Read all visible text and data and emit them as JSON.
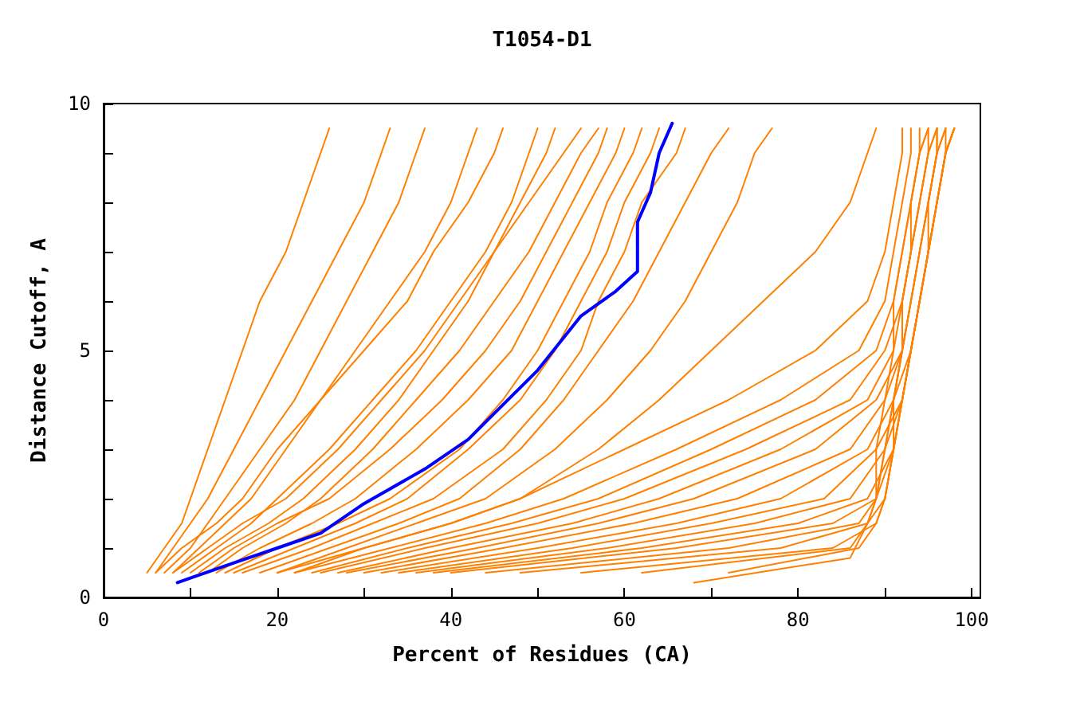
{
  "chart_data": {
    "type": "line",
    "title": "T1054-D1",
    "xlabel": "Percent of Residues (CA)",
    "ylabel": "Distance Cutoff, A",
    "xlim": [
      0,
      101
    ],
    "ylim": [
      0,
      10
    ],
    "xticks": [
      0,
      {
        "value": 10,
        "label": null
      },
      20,
      {
        "value": 30,
        "label": null
      },
      40,
      {
        "value": 50,
        "label": null
      },
      60,
      {
        "value": 70,
        "label": null
      },
      80,
      {
        "value": 90,
        "label": null
      },
      100
    ],
    "yticks": [
      0,
      {
        "value": 1,
        "label": null
      },
      {
        "value": 2,
        "label": null
      },
      {
        "value": 3,
        "label": null
      },
      {
        "value": 4,
        "label": null
      },
      5,
      {
        "value": 6,
        "label": null
      },
      {
        "value": 7,
        "label": null
      },
      {
        "value": 8,
        "label": null
      },
      {
        "value": 9,
        "label": null
      },
      10
    ],
    "grid": false,
    "marker": "none",
    "line_style": "solid",
    "series": [
      {
        "color": "#ff8000",
        "x": [
          5,
          7,
          9,
          10,
          12,
          14,
          16,
          18,
          21,
          23,
          25,
          26
        ],
        "values": [
          0.5,
          1,
          1.5,
          2,
          3,
          4,
          5,
          6,
          7,
          8,
          9,
          9.5
        ]
      },
      {
        "color": "#ff8000",
        "x": [
          6,
          8,
          10,
          12,
          15,
          18,
          21,
          24,
          27,
          30,
          32,
          33
        ],
        "values": [
          0.5,
          1,
          1.5,
          2,
          3,
          4,
          5,
          6,
          7,
          8,
          9,
          9.5
        ]
      },
      {
        "color": "#ff8000",
        "x": [
          7,
          10,
          12,
          14,
          18,
          22,
          25,
          28,
          31,
          34,
          36,
          37
        ],
        "values": [
          0.5,
          1,
          1.5,
          2,
          3,
          4,
          5,
          6,
          7,
          8,
          9,
          9.5
        ]
      },
      {
        "color": "#ff8000",
        "x": [
          8,
          11,
          14,
          17,
          21,
          25,
          29,
          33,
          37,
          40,
          42,
          43
        ],
        "values": [
          0.5,
          1,
          1.5,
          2,
          3,
          4,
          5,
          6,
          7,
          8,
          9,
          9.5
        ]
      },
      {
        "color": "#ff8000",
        "x": [
          6,
          9,
          13,
          16,
          20,
          25,
          30,
          35,
          38,
          42,
          45,
          46
        ],
        "values": [
          0.5,
          1,
          1.5,
          2,
          3,
          4,
          5,
          6,
          7,
          8,
          9,
          9.5
        ]
      },
      {
        "color": "#ff8000",
        "x": [
          9,
          13,
          17,
          20,
          26,
          31,
          36,
          40,
          44,
          47,
          49,
          50
        ],
        "values": [
          0.5,
          1,
          1.5,
          2,
          3,
          4,
          5,
          6,
          7,
          8,
          9,
          9.5
        ]
      },
      {
        "color": "#ff8000",
        "x": [
          10,
          14,
          19,
          23,
          29,
          34,
          38,
          42,
          45,
          48,
          51,
          52
        ],
        "values": [
          0.5,
          1,
          1.5,
          2,
          3,
          4,
          5,
          6,
          7,
          8,
          9,
          9.5
        ]
      },
      {
        "color": "#ff8000",
        "x": [
          8,
          12,
          16,
          21,
          27,
          32,
          37,
          41,
          45,
          49,
          53,
          55
        ],
        "values": [
          0.5,
          1,
          1.5,
          2,
          3,
          4,
          5,
          6,
          7,
          8,
          9,
          9.5
        ]
      },
      {
        "color": "#ff8000",
        "x": [
          12,
          16,
          21,
          25,
          31,
          36,
          41,
          45,
          49,
          52,
          55,
          57
        ],
        "values": [
          0.5,
          1,
          1.5,
          2,
          3,
          4,
          5,
          6,
          7,
          8,
          9,
          9.5
        ]
      },
      {
        "color": "#ff8000",
        "x": [
          11,
          15,
          20,
          26,
          33,
          39,
          44,
          48,
          51,
          54,
          57,
          58
        ],
        "values": [
          0.5,
          1,
          1.5,
          2,
          3,
          4,
          5,
          6,
          7,
          8,
          9,
          9.5
        ]
      },
      {
        "color": "#ff8000",
        "x": [
          13,
          18,
          24,
          29,
          36,
          42,
          47,
          50,
          53,
          56,
          59,
          60
        ],
        "values": [
          0.5,
          1,
          1.5,
          2,
          3,
          4,
          5,
          6,
          7,
          8,
          9,
          9.5
        ]
      },
      {
        "color": "#ff8000",
        "x": [
          14,
          20,
          27,
          33,
          41,
          46,
          50,
          53,
          56,
          58,
          61,
          62
        ],
        "values": [
          0.5,
          1,
          1.5,
          2,
          3,
          4,
          5,
          6,
          7,
          8,
          9,
          9.5
        ]
      },
      {
        "color": "#ff8000",
        "x": [
          15,
          22,
          29,
          35,
          42,
          48,
          52,
          55,
          58,
          60,
          63,
          64
        ],
        "values": [
          0.5,
          1,
          1.5,
          2,
          3,
          4,
          5,
          6,
          7,
          8,
          9,
          9.5
        ]
      },
      {
        "color": "#ff8000",
        "x": [
          16,
          24,
          31,
          38,
          46,
          51,
          55,
          57,
          60,
          62,
          66,
          67
        ],
        "values": [
          0.5,
          1,
          1.5,
          2,
          3,
          4,
          5,
          6,
          7,
          8,
          9,
          9.5
        ]
      },
      {
        "color": "#ff8000",
        "x": [
          18,
          26,
          34,
          41,
          48,
          53,
          57,
          61,
          64,
          67,
          70,
          72
        ],
        "values": [
          0.5,
          1,
          1.5,
          2,
          3,
          4,
          5,
          6,
          7,
          8,
          9,
          9.5
        ]
      },
      {
        "color": "#ff8000",
        "x": [
          20,
          28,
          36,
          44,
          52,
          58,
          63,
          67,
          70,
          73,
          75,
          77
        ],
        "values": [
          0.5,
          1,
          1.5,
          2,
          3,
          4,
          5,
          6,
          7,
          8,
          9,
          9.5
        ]
      },
      {
        "color": "#ff8000",
        "x": [
          22,
          30,
          40,
          48,
          57,
          64,
          70,
          76,
          82,
          86,
          88,
          89
        ],
        "values": [
          0.5,
          1,
          1.5,
          2,
          3,
          4,
          5,
          6,
          7,
          8,
          9,
          9.5
        ]
      },
      {
        "color": "#ff8000",
        "x": [
          20,
          30,
          40,
          48,
          60,
          72,
          82,
          88,
          90,
          91,
          92,
          92
        ],
        "values": [
          0.5,
          1,
          1.5,
          2,
          3,
          4,
          5,
          6,
          7,
          8,
          9,
          9.5
        ]
      },
      {
        "color": "#ff8000",
        "x": [
          22,
          33,
          44,
          53,
          66,
          78,
          87,
          90,
          91,
          92,
          93,
          93
        ],
        "values": [
          0.5,
          1,
          1.5,
          2,
          3,
          4,
          5,
          6,
          7,
          8,
          9,
          9.5
        ]
      },
      {
        "color": "#ff8000",
        "x": [
          24,
          35,
          47,
          57,
          70,
          82,
          89,
          91,
          92,
          93,
          94,
          94
        ],
        "values": [
          0.5,
          1,
          1.5,
          2,
          3,
          4,
          5,
          6,
          7,
          8,
          9,
          9.5
        ]
      },
      {
        "color": "#ff8000",
        "x": [
          25,
          37,
          50,
          60,
          74,
          86,
          90,
          92,
          93,
          94,
          95,
          95
        ],
        "values": [
          0.5,
          1,
          1.5,
          2,
          3,
          4,
          5,
          6,
          7,
          8,
          9,
          9.5
        ]
      },
      {
        "color": "#ff8000",
        "x": [
          27,
          40,
          54,
          64,
          78,
          88,
          91,
          92,
          93,
          94,
          95,
          96
        ],
        "values": [
          0.5,
          1,
          1.5,
          2,
          3,
          4,
          5,
          6,
          7,
          8,
          9,
          9.5
        ]
      },
      {
        "color": "#ff8000",
        "x": [
          28,
          43,
          57,
          68,
          82,
          89,
          92,
          93,
          94,
          95,
          96,
          96
        ],
        "values": [
          0.5,
          1,
          1.5,
          2,
          3,
          4,
          5,
          6,
          7,
          8,
          9,
          9.5
        ]
      },
      {
        "color": "#ff8000",
        "x": [
          30,
          46,
          61,
          73,
          86,
          90,
          92,
          93,
          94,
          95,
          96,
          97
        ],
        "values": [
          0.5,
          1,
          1.5,
          2,
          3,
          4,
          5,
          6,
          7,
          8,
          9,
          9.5
        ]
      },
      {
        "color": "#ff8000",
        "x": [
          32,
          50,
          66,
          78,
          88,
          91,
          93,
          94,
          95,
          96,
          97,
          97
        ],
        "values": [
          0.5,
          1,
          1.5,
          2,
          3,
          4,
          5,
          6,
          7,
          8,
          9,
          9.5
        ]
      },
      {
        "color": "#ff8000",
        "x": [
          34,
          54,
          70,
          83,
          89,
          92,
          93,
          94,
          95,
          96,
          97,
          98
        ],
        "values": [
          0.5,
          1,
          1.5,
          2,
          3,
          4,
          5,
          6,
          7,
          8,
          9,
          9.5
        ]
      },
      {
        "color": "#ff8000",
        "x": [
          36,
          58,
          75,
          86,
          90,
          92,
          93,
          94,
          95,
          96,
          97,
          98
        ],
        "values": [
          0.5,
          1,
          1.5,
          2,
          3,
          4,
          5,
          6,
          7,
          8,
          9,
          9.5
        ]
      },
      {
        "color": "#ff8000",
        "x": [
          38,
          62,
          80,
          88,
          91,
          92,
          93,
          94,
          95,
          96,
          97,
          98
        ],
        "values": [
          0.5,
          1,
          1.5,
          2,
          3,
          4,
          5,
          6,
          7,
          8,
          9,
          9.5
        ]
      },
      {
        "color": "#ff8000",
        "x": [
          40,
          66,
          84,
          89,
          91,
          92,
          93,
          94,
          95,
          96,
          97,
          98
        ],
        "values": [
          0.5,
          1,
          1.5,
          2,
          3,
          4,
          5,
          6,
          7,
          8,
          9,
          9.5
        ]
      },
      {
        "color": "#ff8000",
        "x": [
          44,
          72,
          87,
          89,
          90,
          91,
          92,
          93,
          94,
          95,
          96,
          97
        ],
        "values": [
          0.5,
          1,
          1.5,
          2,
          3,
          4,
          5,
          6,
          7,
          8,
          9,
          9.5
        ]
      },
      {
        "color": "#ff8000",
        "x": [
          48,
          78,
          88,
          89,
          90,
          91,
          92,
          92,
          93,
          94,
          95,
          96
        ],
        "values": [
          0.5,
          1,
          1.5,
          2,
          3,
          4,
          5,
          6,
          7,
          8,
          9,
          9.5
        ]
      },
      {
        "color": "#ff8000",
        "x": [
          55,
          84,
          89,
          90,
          91,
          91,
          92,
          92,
          93,
          93,
          94,
          95
        ],
        "values": [
          0.5,
          1,
          1.5,
          2,
          3,
          4,
          5,
          6,
          7,
          8,
          9,
          9.5
        ]
      },
      {
        "color": "#ff8000",
        "x": [
          62,
          86,
          88,
          89,
          89,
          90,
          91,
          91,
          92,
          93,
          94,
          95
        ],
        "values": [
          0.5,
          1,
          1.5,
          2,
          3,
          4,
          5,
          6,
          7,
          8,
          9,
          9.5
        ]
      },
      {
        "color": "#ff8000",
        "x": [
          72,
          87,
          89,
          90,
          91,
          92,
          93,
          94,
          95,
          95,
          96,
          96
        ],
        "values": [
          0.5,
          1,
          1.5,
          2,
          3,
          4,
          5,
          6,
          7,
          8,
          9,
          9.5
        ]
      },
      {
        "color": "#ff8000",
        "x": [
          68,
          86,
          88,
          90,
          91,
          92,
          93,
          94,
          95,
          96,
          97,
          98
        ],
        "values": [
          0.3,
          0.8,
          1.5,
          2,
          3,
          4,
          5,
          6,
          7,
          8,
          9,
          9.5
        ]
      },
      {
        "color": "#0000ff",
        "x": [
          8.5,
          15,
          20,
          25,
          30,
          37,
          42,
          46,
          50,
          55,
          59,
          61.5,
          61.5,
          63,
          64,
          65.5
        ],
        "values": [
          0.3,
          0.7,
          1,
          1.3,
          1.9,
          2.6,
          3.2,
          3.9,
          4.6,
          5.7,
          6.2,
          6.6,
          7.6,
          8.2,
          9,
          9.6
        ]
      }
    ]
  }
}
